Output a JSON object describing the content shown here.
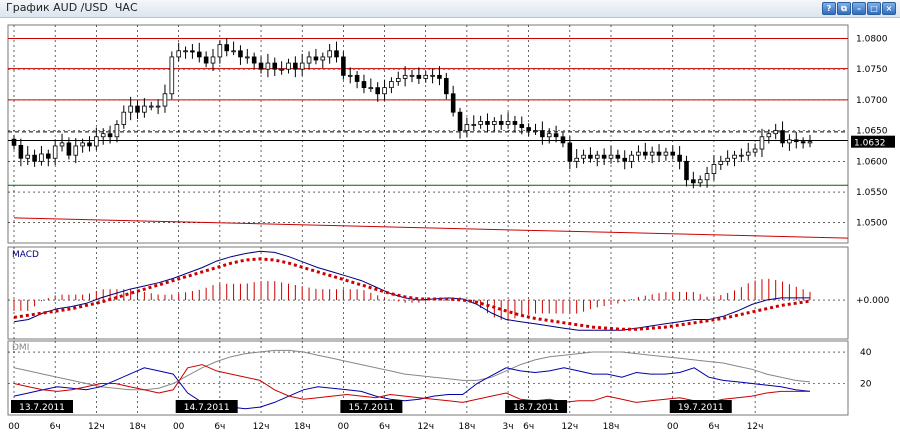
{
  "window": {
    "title": "График AUD /USD  ЧАС",
    "buttons": [
      {
        "name": "help-button",
        "label": "?"
      },
      {
        "name": "restore-button",
        "label": "⧉"
      },
      {
        "name": "minimize-button",
        "label": "–"
      },
      {
        "name": "maximize-button",
        "label": "□"
      },
      {
        "name": "close-button",
        "label": "×"
      }
    ]
  },
  "colors": {
    "candle": "#000000",
    "price_line": "#cc0000",
    "support_line": "#006600",
    "macd_line": "#000080",
    "macd_signal": "#cc0000",
    "dmi_plus": "#0000aa",
    "dmi_minus": "#cc0000",
    "adx": "#888888",
    "grid": "#000000",
    "current_price_bg": "#000000"
  },
  "chart_data": [
    {
      "type": "candlestick",
      "panel": "price",
      "ylim": [
        1.0467,
        1.0822
      ],
      "yticks": [
        "1.0800",
        "1.0750",
        "1.0700",
        "1.0650",
        "1.0600",
        "1.0550",
        "1.0500"
      ],
      "current_price": "1.0632",
      "horizontal_levels": [
        {
          "value": 1.08,
          "color": "red"
        },
        {
          "value": 1.0751,
          "color": "red"
        },
        {
          "value": 1.07,
          "color": "red"
        },
        {
          "value": 1.0648,
          "color": "black",
          "style": "dashed"
        },
        {
          "value": 1.0634,
          "color": "black"
        },
        {
          "value": 1.0561,
          "color": "green"
        }
      ],
      "trendline": {
        "from": [
          0,
          1.0508
        ],
        "to": [
          118,
          1.0475
        ]
      },
      "closes": [
        1.0626,
        1.0605,
        1.061,
        1.06,
        1.0612,
        1.0605,
        1.0625,
        1.063,
        1.061,
        1.0625,
        1.063,
        1.0625,
        1.064,
        1.0645,
        1.064,
        1.066,
        1.068,
        1.069,
        1.068,
        1.069,
        1.069,
        1.069,
        1.071,
        1.077,
        1.078,
        1.078,
        1.0778,
        1.077,
        1.076,
        1.077,
        1.079,
        1.078,
        1.078,
        1.077,
        1.077,
        1.076,
        1.075,
        1.076,
        1.075,
        1.075,
        1.076,
        1.075,
        1.076,
        1.077,
        1.0765,
        1.077,
        1.078,
        1.077,
        1.074,
        1.074,
        1.073,
        1.072,
        1.072,
        1.071,
        1.072,
        1.073,
        1.0735,
        1.074,
        1.074,
        1.0735,
        1.074,
        1.074,
        1.0735,
        1.071,
        1.068,
        1.065,
        1.066,
        1.066,
        1.0665,
        1.066,
        1.0665,
        1.066,
        1.0665,
        1.066,
        1.0655,
        1.065,
        1.065,
        1.064,
        1.0645,
        1.064,
        1.063,
        1.06,
        1.0605,
        1.061,
        1.0605,
        1.061,
        1.0605,
        1.061,
        1.0605,
        1.06,
        1.061,
        1.0615,
        1.061,
        1.0615,
        1.061,
        1.0615,
        1.061,
        1.06,
        1.057,
        1.0565,
        1.057,
        1.058,
        1.0595,
        1.06,
        1.0605,
        1.061,
        1.061,
        1.0615,
        1.062,
        1.064,
        1.0645,
        1.065,
        1.063,
        1.0635,
        1.0632,
        1.063,
        1.0632
      ]
    },
    {
      "type": "line",
      "panel": "macd",
      "label": "MACD",
      "ytick": "+0.000",
      "ylim": [
        -0.0036,
        0.0049
      ],
      "series": [
        {
          "name": "macd",
          "style": "solid",
          "values": [
            -0.002,
            -0.0018,
            -0.0012,
            -0.0008,
            -0.0006,
            -0.0003,
            0.0002,
            0.0006,
            0.001,
            0.0013,
            0.0016,
            0.002,
            0.0025,
            0.003,
            0.0036,
            0.004,
            0.0043,
            0.0045,
            0.0044,
            0.004,
            0.0035,
            0.003,
            0.0026,
            0.0022,
            0.0018,
            0.0012,
            0.0006,
            0.0002,
            0.0,
            0.0001,
            0.0002,
            0.0001,
            -0.0004,
            -0.0012,
            -0.0018,
            -0.002,
            -0.0022,
            -0.0024,
            -0.0026,
            -0.0028,
            -0.0028,
            -0.0028,
            -0.0028,
            -0.0026,
            -0.0024,
            -0.0022,
            -0.002,
            -0.0018,
            -0.0018,
            -0.0015,
            -0.001,
            -0.0004,
            0.0,
            0.0002,
            0.0002,
            0.0002
          ]
        },
        {
          "name": "signal",
          "style": "dotted",
          "values": [
            -0.0016,
            -0.0014,
            -0.0012,
            -0.001,
            -0.0008,
            -0.0005,
            -0.0002,
            0.0002,
            0.0006,
            0.001,
            0.0014,
            0.0018,
            0.0022,
            0.0026,
            0.003,
            0.0034,
            0.0037,
            0.0038,
            0.0037,
            0.0034,
            0.003,
            0.0026,
            0.0022,
            0.0018,
            0.0014,
            0.001,
            0.0006,
            0.0003,
            0.0001,
            0.0001,
            0.0001,
            0.0,
            -0.0002,
            -0.0006,
            -0.001,
            -0.0014,
            -0.0017,
            -0.0019,
            -0.0021,
            -0.0023,
            -0.0025,
            -0.0026,
            -0.0027,
            -0.0027,
            -0.0026,
            -0.0025,
            -0.0023,
            -0.0021,
            -0.0019,
            -0.0017,
            -0.0014,
            -0.0011,
            -0.0008,
            -0.0005,
            -0.0003,
            -0.0001
          ]
        }
      ]
    },
    {
      "type": "line",
      "panel": "dmi",
      "label": "DMI",
      "yticks": [
        "40",
        "20"
      ],
      "ylim": [
        0,
        47
      ],
      "series": [
        {
          "name": "adx",
          "values": [
            30,
            28,
            26,
            24,
            22,
            20,
            18,
            17,
            16,
            16,
            17,
            20,
            25,
            30,
            34,
            37,
            39,
            40,
            41,
            41,
            40,
            38,
            36,
            34,
            32,
            30,
            28,
            26,
            25,
            24,
            23,
            22,
            22,
            24,
            28,
            32,
            35,
            37,
            38,
            39,
            40,
            40,
            40,
            39,
            38,
            37,
            36,
            35,
            34,
            33,
            31,
            29,
            26,
            24,
            22,
            21
          ]
        },
        {
          "name": "dmi_plus",
          "values": [
            12,
            14,
            16,
            18,
            17,
            16,
            18,
            22,
            26,
            30,
            28,
            26,
            14,
            8,
            6,
            5,
            4,
            5,
            8,
            12,
            16,
            18,
            17,
            16,
            15,
            12,
            10,
            9,
            10,
            12,
            13,
            13,
            20,
            25,
            30,
            28,
            27,
            28,
            30,
            28,
            26,
            26,
            24,
            27,
            26,
            26,
            27,
            30,
            24,
            22,
            21,
            20,
            19,
            18,
            16,
            15
          ]
        },
        {
          "name": "dmi_minus",
          "values": [
            20,
            18,
            16,
            15,
            16,
            18,
            20,
            20,
            18,
            16,
            14,
            16,
            30,
            32,
            28,
            26,
            24,
            22,
            16,
            12,
            10,
            11,
            12,
            13,
            12,
            11,
            13,
            12,
            11,
            10,
            9,
            8,
            10,
            12,
            14,
            10,
            9,
            10,
            8,
            9,
            9,
            12,
            10,
            8,
            9,
            10,
            11,
            9,
            8,
            10,
            11,
            12,
            14,
            15,
            15,
            15
          ]
        }
      ]
    }
  ],
  "time_axis": {
    "day_labels": [
      {
        "text": "13.7.2011",
        "bar": 0
      },
      {
        "text": "14.7.2011",
        "bar": 24
      },
      {
        "text": "15.7.2011",
        "bar": 48
      },
      {
        "text": "18.7.2011",
        "bar": 72
      },
      {
        "text": "19.7.2011",
        "bar": 96
      }
    ],
    "hour_labels": [
      {
        "text": "00",
        "bar": 0
      },
      {
        "text": "6ч",
        "bar": 6
      },
      {
        "text": "12ч",
        "bar": 12
      },
      {
        "text": "18ч",
        "bar": 18
      },
      {
        "text": "00",
        "bar": 24
      },
      {
        "text": "6ч",
        "bar": 30
      },
      {
        "text": "12ч",
        "bar": 36
      },
      {
        "text": "18ч",
        "bar": 42
      },
      {
        "text": "00",
        "bar": 48
      },
      {
        "text": "6ч",
        "bar": 54
      },
      {
        "text": "12ч",
        "bar": 60
      },
      {
        "text": "18ч",
        "bar": 66
      },
      {
        "text": "3ч",
        "bar": 72
      },
      {
        "text": "6ч",
        "bar": 75
      },
      {
        "text": "12ч",
        "bar": 81
      },
      {
        "text": "18ч",
        "bar": 87
      },
      {
        "text": "00",
        "bar": 96
      },
      {
        "text": "6ч",
        "bar": 102
      },
      {
        "text": "12ч",
        "bar": 108
      }
    ]
  }
}
